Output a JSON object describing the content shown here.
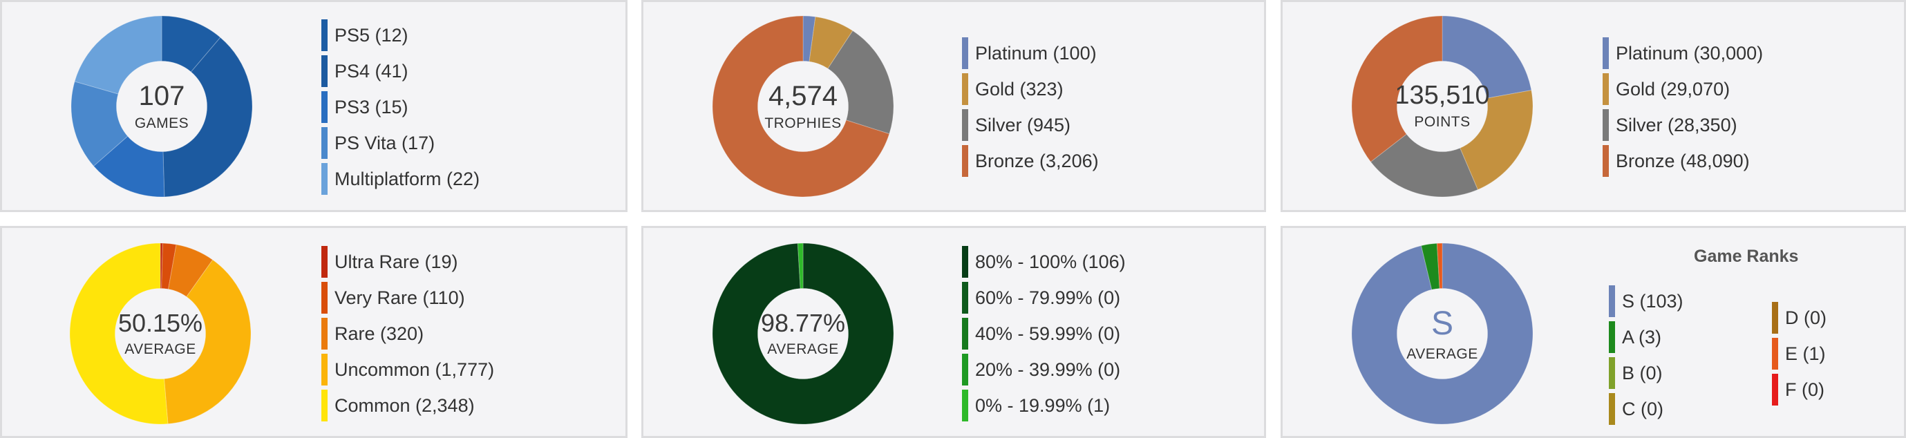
{
  "colors": {
    "panel_bg": "#f4f4f6",
    "panel_border": "#dcdcde",
    "center_bg": "#f4f4f6"
  },
  "chart_data": [
    {
      "type": "pie",
      "center_value": "107",
      "center_label": "GAMES",
      "legend": [
        "PS5 (12)",
        "PS4 (41)",
        "PS3 (15)",
        "PS Vita (17)",
        "Multiplatform (22)"
      ],
      "categories": [
        "PS5",
        "PS4",
        "PS3",
        "PS Vita",
        "Multiplatform"
      ],
      "values": [
        12,
        41,
        15,
        17,
        22
      ],
      "colors": [
        "#1d5da4",
        "#1c5aa0",
        "#2a6ec0",
        "#4a88cc",
        "#6aa2db"
      ]
    },
    {
      "type": "pie",
      "center_value": "4,574",
      "center_label": "TROPHIES",
      "legend": [
        "Platinum (100)",
        "Gold (323)",
        "Silver (945)",
        "Bronze (3,206)"
      ],
      "categories": [
        "Platinum",
        "Gold",
        "Silver",
        "Bronze"
      ],
      "values": [
        100,
        323,
        945,
        3206
      ],
      "colors": [
        "#6c83b8",
        "#c4913f",
        "#7a7a7a",
        "#c6673a"
      ]
    },
    {
      "type": "pie",
      "center_value": "135,510",
      "center_label": "POINTS",
      "legend": [
        "Platinum (30,000)",
        "Gold (29,070)",
        "Silver (28,350)",
        "Bronze (48,090)"
      ],
      "categories": [
        "Platinum",
        "Gold",
        "Silver",
        "Bronze"
      ],
      "values": [
        30000,
        29070,
        28350,
        48090
      ],
      "colors": [
        "#6c83b8",
        "#c4913f",
        "#7a7a7a",
        "#c6673a"
      ]
    },
    {
      "type": "pie",
      "center_value": "50.15%",
      "center_label": "AVERAGE",
      "legend": [
        "Ultra Rare (19)",
        "Very Rare (110)",
        "Rare (320)",
        "Uncommon (1,777)",
        "Common (2,348)"
      ],
      "categories": [
        "Ultra Rare",
        "Very Rare",
        "Rare",
        "Uncommon",
        "Common"
      ],
      "values": [
        19,
        110,
        320,
        1777,
        2348
      ],
      "colors": [
        "#c0290f",
        "#d94e0b",
        "#ea7b0e",
        "#fbb40a",
        "#ffe40a"
      ]
    },
    {
      "type": "pie",
      "center_value": "98.77%",
      "center_label": "AVERAGE",
      "legend": [
        "80% - 100% (106)",
        "60% - 79.99% (0)",
        "40% - 59.99% (0)",
        "20% - 39.99% (0)",
        "0% - 19.99% (1)"
      ],
      "categories": [
        "80% - 100%",
        "60% - 79.99%",
        "40% - 59.99%",
        "20% - 39.99%",
        "0% - 19.99%"
      ],
      "values": [
        106,
        0,
        0,
        0,
        1
      ],
      "colors": [
        "#073d17",
        "#0e5a1c",
        "#167a1e",
        "#1f9a24",
        "#2fb92a"
      ]
    },
    {
      "type": "pie",
      "title": "Game Ranks",
      "center_value": "S",
      "center_label": "AVERAGE",
      "legend": [
        "S (103)",
        "A (3)",
        "B (0)",
        "C (0)",
        "D (0)",
        "E (1)",
        "F (0)"
      ],
      "categories": [
        "S",
        "A",
        "B",
        "C",
        "D",
        "E",
        "F"
      ],
      "values": [
        103,
        3,
        0,
        0,
        0,
        1,
        0
      ],
      "colors": [
        "#6c83b8",
        "#1d8a1d",
        "#7fa12a",
        "#a9891c",
        "#a86f17",
        "#e65a1d",
        "#e61c1c"
      ]
    }
  ]
}
